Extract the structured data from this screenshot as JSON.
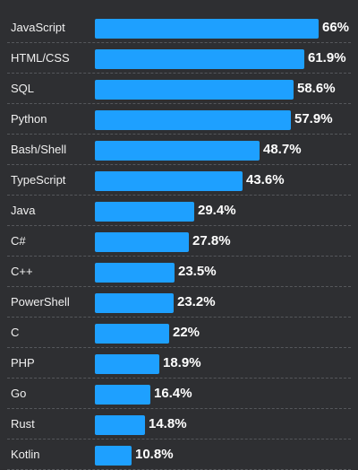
{
  "chart_data": {
    "type": "bar",
    "orientation": "horizontal",
    "categories": [
      "JavaScript",
      "HTML/CSS",
      "SQL",
      "Python",
      "Bash/Shell",
      "TypeScript",
      "Java",
      "C#",
      "C++",
      "PowerShell",
      "C",
      "PHP",
      "Go",
      "Rust",
      "Kotlin"
    ],
    "values": [
      66,
      61.9,
      58.6,
      57.9,
      48.7,
      43.6,
      29.4,
      27.8,
      23.5,
      23.2,
      22,
      18.9,
      16.4,
      14.8,
      10.8
    ],
    "value_labels": [
      "66%",
      "61.9%",
      "58.6%",
      "57.9%",
      "48.7%",
      "43.6%",
      "29.4%",
      "27.8%",
      "23.5%",
      "23.2%",
      "22%",
      "18.9%",
      "16.4%",
      "14.8%",
      "10.8%"
    ],
    "xlim": [
      0,
      66
    ],
    "grid": false,
    "bar_color": "#1ea0ff",
    "background_color": "#2e2f32",
    "text_color": "#f0f0f0"
  }
}
